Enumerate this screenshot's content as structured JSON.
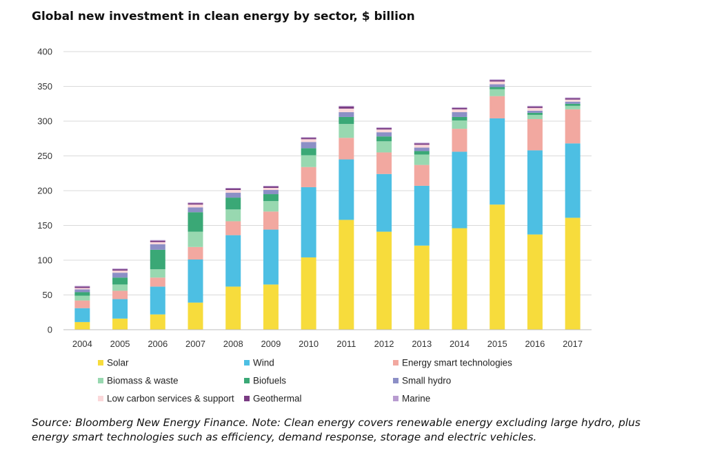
{
  "title": "Global new investment in clean energy by sector, $ billion",
  "source_note": "Source: Bloomberg New Energy Finance. Note: Clean energy covers renewable energy excluding large hydro, plus energy smart technologies such as efficiency, demand response, storage and electric vehicles.",
  "chart_data": {
    "type": "bar",
    "stacked": true,
    "title": "Global new investment in clean energy by sector, $ billion",
    "xlabel": "",
    "ylabel": "",
    "ylim": [
      0,
      400
    ],
    "yticks": [
      0,
      50,
      100,
      150,
      200,
      250,
      300,
      350,
      400
    ],
    "grid": true,
    "legend_position": "bottom",
    "categories": [
      "2004",
      "2005",
      "2006",
      "2007",
      "2008",
      "2009",
      "2010",
      "2011",
      "2012",
      "2013",
      "2014",
      "2015",
      "2016",
      "2017"
    ],
    "series": [
      {
        "name": "Solar",
        "color": "#f7dc3c",
        "values": [
          11,
          16,
          22,
          39,
          62,
          65,
          104,
          158,
          141,
          121,
          146,
          180,
          137,
          161
        ]
      },
      {
        "name": "Wind",
        "color": "#4dbfe3",
        "values": [
          20,
          28,
          40,
          62,
          74,
          79,
          101,
          87,
          83,
          86,
          110,
          124,
          121,
          107
        ]
      },
      {
        "name": "Energy smart technologies",
        "color": "#f2a8a0",
        "values": [
          11,
          12,
          13,
          18,
          20,
          26,
          29,
          31,
          31,
          30,
          33,
          32,
          45,
          49
        ]
      },
      {
        "name": "Biomass & waste",
        "color": "#98d8b0",
        "values": [
          7,
          9,
          12,
          22,
          17,
          15,
          17,
          20,
          16,
          15,
          12,
          10,
          6,
          5
        ]
      },
      {
        "name": "Biofuels",
        "color": "#3aa876",
        "values": [
          5,
          10,
          28,
          28,
          17,
          10,
          10,
          10,
          7,
          5,
          5,
          3,
          3,
          3
        ]
      },
      {
        "name": "Small hydro",
        "color": "#8c8fc6",
        "values": [
          4,
          7,
          8,
          7,
          7,
          6,
          9,
          7,
          6,
          5,
          7,
          4,
          3,
          3
        ]
      },
      {
        "name": "Low carbon services & support",
        "color": "#fbd8da",
        "values": [
          2,
          3,
          3,
          4,
          4,
          3,
          4,
          5,
          4,
          4,
          4,
          4,
          4,
          3
        ]
      },
      {
        "name": "Geothermal",
        "color": "#7a3c83",
        "values": [
          2,
          2,
          2,
          2,
          2,
          2,
          2,
          3,
          2,
          2,
          2,
          2,
          2,
          2
        ]
      },
      {
        "name": "Marine",
        "color": "#b89bd0",
        "values": [
          1,
          1,
          1,
          1,
          1,
          1,
          1,
          1,
          1,
          1,
          1,
          1,
          1,
          1
        ]
      }
    ]
  }
}
